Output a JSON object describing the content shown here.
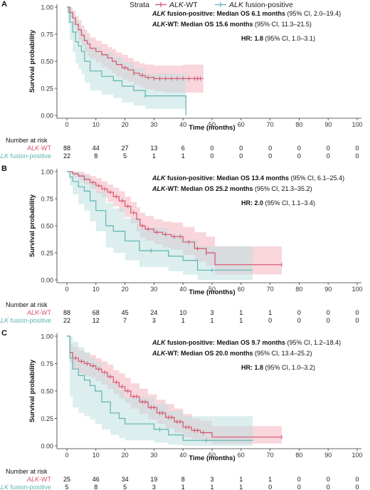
{
  "legend": {
    "title": "Strata",
    "items": [
      {
        "label_italic": "ALK",
        "label_rest": "-WT",
        "color": "#d6536d"
      },
      {
        "label_italic": "ALK",
        "label_rest": " fusion-positive",
        "color": "#5fb3b3"
      }
    ]
  },
  "colors": {
    "wt": "#d6536d",
    "wt_band": "#f2b4bf",
    "fp": "#5fb3b3",
    "fp_band": "#bfe0e0",
    "overlap": "#c9c2c2"
  },
  "chart_data": [
    {
      "panel": "A",
      "type": "line",
      "xlabel": "Time (months)",
      "ylabel": "Survival probability",
      "xlim": [
        0,
        100
      ],
      "ylim": [
        0,
        1
      ],
      "xticks": [
        0,
        10,
        20,
        30,
        40,
        50,
        60,
        70,
        80,
        90,
        100
      ],
      "yticks": [
        "0.00",
        "0.25",
        "0.50",
        "0.75",
        "1.00"
      ],
      "annotations": [
        {
          "bold_italic": "ALK",
          "bold": " fusion-positive: Median OS 6.1 months",
          "plain": " (95% CI, 2.0–19.4)"
        },
        {
          "bold_italic": "ALK",
          "bold": "-WT: Median OS 15.6 months",
          "plain": " (95% CI, 11.3–21.5)"
        },
        {
          "bold_italic": "",
          "bold": "HR: 1.8",
          "plain": " (95% CI, 1.0–3.1)"
        }
      ],
      "series": [
        {
          "name": "ALK-WT",
          "key": "wt",
          "x": [
            0,
            1,
            2,
            3,
            4,
            5,
            6,
            7,
            8,
            10,
            12,
            14,
            15.6,
            17,
            19,
            21,
            23,
            25,
            27,
            30,
            34,
            40,
            44,
            47
          ],
          "y": [
            1.0,
            0.95,
            0.9,
            0.84,
            0.79,
            0.74,
            0.69,
            0.66,
            0.62,
            0.59,
            0.56,
            0.53,
            0.5,
            0.47,
            0.44,
            0.42,
            0.39,
            0.37,
            0.35,
            0.34,
            0.34,
            0.34,
            0.34,
            0.34
          ],
          "upper": [
            1.0,
            1.0,
            0.97,
            0.92,
            0.88,
            0.83,
            0.79,
            0.76,
            0.72,
            0.69,
            0.66,
            0.63,
            0.61,
            0.58,
            0.56,
            0.53,
            0.5,
            0.48,
            0.47,
            0.46,
            0.46,
            0.47,
            0.47,
            0.47
          ],
          "lower": [
            1.0,
            0.9,
            0.83,
            0.76,
            0.69,
            0.64,
            0.59,
            0.55,
            0.52,
            0.49,
            0.45,
            0.42,
            0.39,
            0.36,
            0.33,
            0.31,
            0.28,
            0.26,
            0.24,
            0.22,
            0.21,
            0.21,
            0.21,
            0.21
          ],
          "censor_x": [
            20,
            23,
            26,
            28,
            30,
            32,
            34,
            36,
            38,
            40,
            42,
            44,
            45,
            46
          ]
        },
        {
          "name": "ALK fusion-positive",
          "key": "fp",
          "x": [
            0,
            0.5,
            1,
            2,
            3,
            4,
            5,
            6.1,
            8,
            12,
            16,
            19,
            23,
            27,
            30,
            34,
            38,
            40.5,
            41
          ],
          "y": [
            1.0,
            0.95,
            0.86,
            0.77,
            0.68,
            0.64,
            0.59,
            0.5,
            0.41,
            0.36,
            0.32,
            0.27,
            0.23,
            0.18,
            0.18,
            0.18,
            0.18,
            0.18,
            0.0
          ],
          "upper": [
            1.0,
            1.0,
            0.99,
            0.93,
            0.87,
            0.83,
            0.79,
            0.72,
            0.63,
            0.58,
            0.54,
            0.49,
            0.44,
            0.38,
            0.38,
            0.38,
            0.38,
            0.38,
            0.38
          ],
          "lower": [
            1.0,
            0.85,
            0.7,
            0.58,
            0.48,
            0.43,
            0.38,
            0.3,
            0.23,
            0.19,
            0.16,
            0.12,
            0.09,
            0.06,
            0.06,
            0.06,
            0.06,
            0.06,
            0.0
          ],
          "censor_x": [
            27
          ]
        }
      ],
      "risk_table": {
        "title": "Number at risk",
        "times": [
          0,
          10,
          20,
          30,
          40,
          50,
          60,
          70,
          80,
          90,
          100
        ],
        "rows": [
          {
            "italic": "ALK",
            "rest": "-WT",
            "key": "wt",
            "values": [
              "88",
              "44",
              "27",
              "13",
              "6",
              "0",
              "0",
              "0",
              "0",
              "0",
              "0"
            ]
          },
          {
            "italic": "ALK",
            "rest": " fusion-positive",
            "key": "fp",
            "values": [
              "22",
              "8",
              "5",
              "1",
              "1",
              "0",
              "0",
              "0",
              "0",
              "0",
              "0"
            ]
          }
        ]
      }
    },
    {
      "panel": "B",
      "type": "line",
      "xlabel": "Time (months)",
      "ylabel": "Survival probability",
      "xlim": [
        0,
        100
      ],
      "ylim": [
        0,
        1
      ],
      "xticks": [
        0,
        10,
        20,
        30,
        40,
        50,
        60,
        70,
        80,
        90,
        100
      ],
      "yticks": [
        "0.00",
        "0.25",
        "0.50",
        "0.75",
        "1.00"
      ],
      "annotations": [
        {
          "bold_italic": "ALK",
          "bold": " fusion-positive: Median OS 13.4 months",
          "plain": " (95% CI, 6.1–25.4)"
        },
        {
          "bold_italic": "ALK",
          "bold": "-WT: Median OS 25.2 months",
          "plain": " (95% CI, 21.3–35.2)"
        },
        {
          "bold_italic": "",
          "bold": "HR: 2.0",
          "plain": " (95% CI, 1.1–3.4)"
        }
      ],
      "series": [
        {
          "name": "ALK-WT",
          "key": "wt",
          "x": [
            0,
            2,
            4,
            6,
            8,
            10,
            12,
            14,
            16,
            18,
            20,
            22,
            24,
            25.2,
            27,
            30,
            33,
            36,
            40,
            44,
            48,
            51,
            55,
            60,
            64,
            70,
            74
          ],
          "y": [
            1.0,
            0.98,
            0.96,
            0.93,
            0.9,
            0.87,
            0.84,
            0.81,
            0.77,
            0.73,
            0.68,
            0.62,
            0.56,
            0.5,
            0.47,
            0.44,
            0.42,
            0.4,
            0.35,
            0.29,
            0.25,
            0.14,
            0.14,
            0.14,
            0.14,
            0.14,
            0.14
          ],
          "upper": [
            1.0,
            1.0,
            1.0,
            0.98,
            0.96,
            0.94,
            0.91,
            0.88,
            0.85,
            0.82,
            0.77,
            0.72,
            0.67,
            0.62,
            0.59,
            0.56,
            0.54,
            0.53,
            0.49,
            0.44,
            0.4,
            0.31,
            0.31,
            0.31,
            0.31,
            0.31,
            0.31
          ],
          "lower": [
            1.0,
            0.95,
            0.92,
            0.88,
            0.84,
            0.8,
            0.76,
            0.72,
            0.68,
            0.63,
            0.58,
            0.52,
            0.45,
            0.39,
            0.36,
            0.33,
            0.3,
            0.28,
            0.23,
            0.17,
            0.13,
            0.05,
            0.05,
            0.05,
            0.05,
            0.05,
            0.05
          ],
          "censor_x": [
            6,
            9,
            11,
            13,
            15,
            17,
            19,
            21,
            23,
            26,
            28,
            31,
            34,
            37,
            39,
            42,
            45,
            48,
            74
          ]
        },
        {
          "name": "ALK fusion-positive",
          "key": "fp",
          "x": [
            0,
            1,
            2,
            4,
            6,
            8,
            10,
            13.4,
            16,
            20,
            25,
            30,
            35,
            40,
            45,
            50,
            52,
            64
          ],
          "y": [
            1.0,
            0.95,
            0.91,
            0.86,
            0.82,
            0.73,
            0.64,
            0.5,
            0.45,
            0.36,
            0.27,
            0.27,
            0.22,
            0.18,
            0.09,
            0.09,
            0.09,
            0.09
          ],
          "upper": [
            1.0,
            1.0,
            1.0,
            0.98,
            0.96,
            0.9,
            0.82,
            0.71,
            0.66,
            0.57,
            0.48,
            0.48,
            0.42,
            0.37,
            0.31,
            0.31,
            0.31,
            0.31
          ],
          "lower": [
            1.0,
            0.87,
            0.79,
            0.7,
            0.64,
            0.54,
            0.45,
            0.3,
            0.25,
            0.18,
            0.12,
            0.12,
            0.08,
            0.05,
            0.0,
            0.0,
            0.0,
            0.0
          ],
          "censor_x": [
            29,
            50
          ]
        }
      ],
      "risk_table": {
        "title": "Number at risk",
        "times": [
          0,
          10,
          20,
          30,
          40,
          50,
          60,
          70,
          80,
          90,
          100
        ],
        "rows": [
          {
            "italic": "ALK",
            "rest": "-WT",
            "key": "wt",
            "values": [
              "88",
              "68",
              "45",
              "24",
              "10",
              "3",
              "1",
              "1",
              "0",
              "0",
              "0"
            ]
          },
          {
            "italic": "ALK",
            "rest": " fusion-positive",
            "key": "fp",
            "values": [
              "22",
              "12",
              "7",
              "3",
              "1",
              "1",
              "1",
              "0",
              "0",
              "0",
              "0"
            ]
          }
        ]
      }
    },
    {
      "panel": "C",
      "type": "line",
      "xlabel": "Time (months)",
      "ylabel": "Survival probability",
      "xlim": [
        0,
        100
      ],
      "ylim": [
        0,
        1
      ],
      "xticks": [
        0,
        10,
        20,
        30,
        40,
        50,
        60,
        70,
        80,
        90,
        100
      ],
      "yticks": [
        "0.00",
        "0.25",
        "0.50",
        "0.75",
        "1.00"
      ],
      "annotations": [
        {
          "bold_italic": "ALK",
          "bold": " fusion-positive: Median OS 9.7 months",
          "plain": " (95% CI, 1.2–18.4)"
        },
        {
          "bold_italic": "ALK",
          "bold": "-WT: Median OS 20.0 months",
          "plain": " (95% CI, 13.4–25.2)"
        },
        {
          "bold_italic": "",
          "bold": "HR: 1.8",
          "plain": " (95% CI, 1.0–3.2)"
        }
      ],
      "series": [
        {
          "name": "ALK-WT",
          "key": "wt",
          "x": [
            0,
            1,
            2,
            4,
            6,
            8,
            10,
            12,
            14,
            16,
            18,
            20,
            22,
            25,
            28,
            31,
            34,
            37,
            40,
            43,
            46,
            50,
            52,
            64,
            74
          ],
          "y": [
            1.0,
            0.85,
            0.8,
            0.77,
            0.75,
            0.73,
            0.7,
            0.67,
            0.63,
            0.58,
            0.54,
            0.5,
            0.45,
            0.4,
            0.35,
            0.3,
            0.26,
            0.22,
            0.17,
            0.14,
            0.12,
            0.08,
            0.08,
            0.08,
            0.08
          ],
          "upper": [
            1.0,
            0.93,
            0.9,
            0.87,
            0.85,
            0.83,
            0.8,
            0.77,
            0.74,
            0.69,
            0.66,
            0.62,
            0.57,
            0.52,
            0.47,
            0.42,
            0.38,
            0.34,
            0.29,
            0.25,
            0.23,
            0.18,
            0.18,
            0.18,
            0.18
          ],
          "lower": [
            1.0,
            0.76,
            0.7,
            0.66,
            0.64,
            0.62,
            0.59,
            0.56,
            0.52,
            0.47,
            0.43,
            0.39,
            0.34,
            0.29,
            0.24,
            0.2,
            0.16,
            0.12,
            0.08,
            0.06,
            0.04,
            0.02,
            0.02,
            0.02,
            0.02
          ],
          "censor_x": [
            3,
            5,
            7,
            9,
            11,
            13,
            15,
            17,
            19,
            21,
            23,
            24,
            26,
            27,
            29,
            30,
            32,
            33,
            35,
            36,
            38,
            39,
            41,
            42,
            44,
            45,
            47,
            74
          ]
        },
        {
          "name": "ALK fusion-positive",
          "key": "fp",
          "x": [
            0,
            1,
            2,
            4,
            6,
            8,
            9.7,
            12,
            15,
            18,
            20,
            25,
            30,
            35,
            40,
            45,
            50,
            55,
            64
          ],
          "y": [
            1.0,
            0.8,
            0.7,
            0.64,
            0.6,
            0.55,
            0.5,
            0.4,
            0.3,
            0.25,
            0.2,
            0.2,
            0.15,
            0.1,
            0.05,
            0.05,
            0.05,
            0.05,
            0.05
          ],
          "upper": [
            1.0,
            1.0,
            0.95,
            0.9,
            0.85,
            0.8,
            0.76,
            0.66,
            0.57,
            0.51,
            0.44,
            0.44,
            0.38,
            0.32,
            0.27,
            0.27,
            0.27,
            0.27,
            0.27
          ],
          "lower": [
            1.0,
            0.45,
            0.35,
            0.3,
            0.27,
            0.24,
            0.2,
            0.15,
            0.1,
            0.07,
            0.05,
            0.05,
            0.03,
            0.01,
            0.0,
            0.0,
            0.0,
            0.0,
            0.0
          ],
          "censor_x": [
            32,
            48
          ]
        }
      ],
      "risk_table": {
        "title": "Number at risk",
        "times": [
          0,
          10,
          20,
          30,
          40,
          50,
          60,
          70,
          80,
          90,
          100
        ],
        "rows": [
          {
            "italic": "ALK",
            "rest": "-WT",
            "key": "wt",
            "values": [
              "25",
              "46",
              "34",
              "19",
              "8",
              "3",
              "1",
              "1",
              "0",
              "0",
              "0"
            ]
          },
          {
            "italic": "ALK",
            "rest": " fusion-positive",
            "key": "fp",
            "values": [
              "5",
              "8",
              "5",
              "3",
              "1",
              "1",
              "1",
              "0",
              "0",
              "0",
              "0"
            ]
          }
        ]
      }
    }
  ]
}
